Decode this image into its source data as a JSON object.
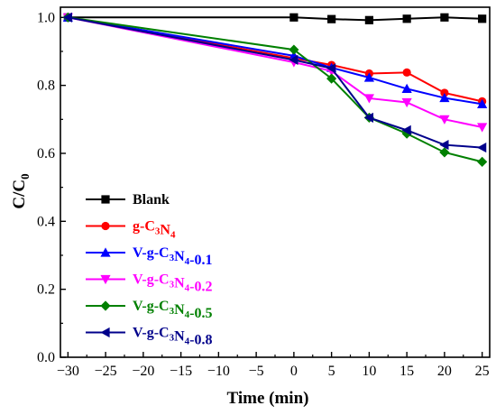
{
  "chart_data": {
    "type": "line",
    "xlabel": "Time (min)",
    "ylabel": {
      "main": "C/C",
      "sub": "0"
    },
    "xlim": [
      -31,
      26
    ],
    "ylim": [
      0.0,
      1.03
    ],
    "xticks": [
      -30,
      -25,
      -20,
      -15,
      -10,
      -5,
      0,
      5,
      10,
      15,
      20,
      25
    ],
    "xtick_labels": [
      "−30",
      "−25",
      "−20",
      "−15",
      "−10",
      "−5",
      "0",
      "5",
      "10",
      "15",
      "20",
      "25"
    ],
    "yticks": [
      0.0,
      0.2,
      0.4,
      0.6,
      0.8,
      1.0
    ],
    "ytick_labels": [
      "0.0",
      "0.2",
      "0.4",
      "0.6",
      "0.8",
      "1.0"
    ],
    "grid": false,
    "legend_position": "lower-left",
    "series": [
      {
        "name": "Blank",
        "label_parts": [
          [
            "Blank",
            ""
          ]
        ],
        "color": "#000000",
        "marker": "square",
        "x": [
          -30,
          0,
          5,
          10,
          15,
          20,
          25
        ],
        "y": [
          1.0,
          1.0,
          0.995,
          0.992,
          0.996,
          1.0,
          0.996
        ]
      },
      {
        "name": "g-C3N4",
        "label_parts": [
          [
            "g-C",
            ""
          ],
          [
            "",
            "3"
          ],
          [
            "N",
            ""
          ],
          [
            "",
            "4"
          ]
        ],
        "color": "#ff0000",
        "marker": "circle",
        "x": [
          -30,
          0,
          5,
          10,
          15,
          20,
          25
        ],
        "y": [
          1.0,
          0.88,
          0.86,
          0.835,
          0.838,
          0.778,
          0.753
        ]
      },
      {
        "name": "V-g-C3N4-0.1",
        "label_parts": [
          [
            "V-g-C",
            ""
          ],
          [
            "",
            "3"
          ],
          [
            "N",
            ""
          ],
          [
            "",
            "4"
          ],
          [
            "-0.1",
            ""
          ]
        ],
        "color": "#0000ff",
        "marker": "triangle-up",
        "x": [
          -30,
          0,
          5,
          10,
          15,
          20,
          25
        ],
        "y": [
          1.0,
          0.887,
          0.852,
          0.823,
          0.79,
          0.763,
          0.745
        ]
      },
      {
        "name": "V-g-C3N4-0.2",
        "label_parts": [
          [
            "V-g-C",
            ""
          ],
          [
            "",
            "3"
          ],
          [
            "N",
            ""
          ],
          [
            "",
            "4"
          ],
          [
            "-0.2",
            ""
          ]
        ],
        "color": "#ff00ff",
        "marker": "triangle-down",
        "x": [
          -30,
          0,
          5,
          10,
          15,
          20,
          25
        ],
        "y": [
          1.0,
          0.868,
          0.842,
          0.762,
          0.75,
          0.7,
          0.677
        ]
      },
      {
        "name": "V-g-C3N4-0.5",
        "label_parts": [
          [
            "V-g-C",
            ""
          ],
          [
            "",
            "3"
          ],
          [
            "N",
            ""
          ],
          [
            "",
            "4"
          ],
          [
            "-0.5",
            ""
          ]
        ],
        "color": "#008000",
        "marker": "diamond",
        "x": [
          -30,
          0,
          5,
          10,
          15,
          20,
          25
        ],
        "y": [
          1.0,
          0.905,
          0.82,
          0.705,
          0.658,
          0.603,
          0.575
        ]
      },
      {
        "name": "V-g-C3N4-0.8",
        "label_parts": [
          [
            "V-g-C",
            ""
          ],
          [
            "",
            "3"
          ],
          [
            "N",
            ""
          ],
          [
            "",
            "4"
          ],
          [
            "-0.8",
            ""
          ]
        ],
        "color": "#00008b",
        "marker": "triangle-left",
        "x": [
          -30,
          0,
          5,
          10,
          15,
          20,
          25
        ],
        "y": [
          1.0,
          0.875,
          0.85,
          0.705,
          0.668,
          0.625,
          0.617
        ]
      }
    ]
  }
}
